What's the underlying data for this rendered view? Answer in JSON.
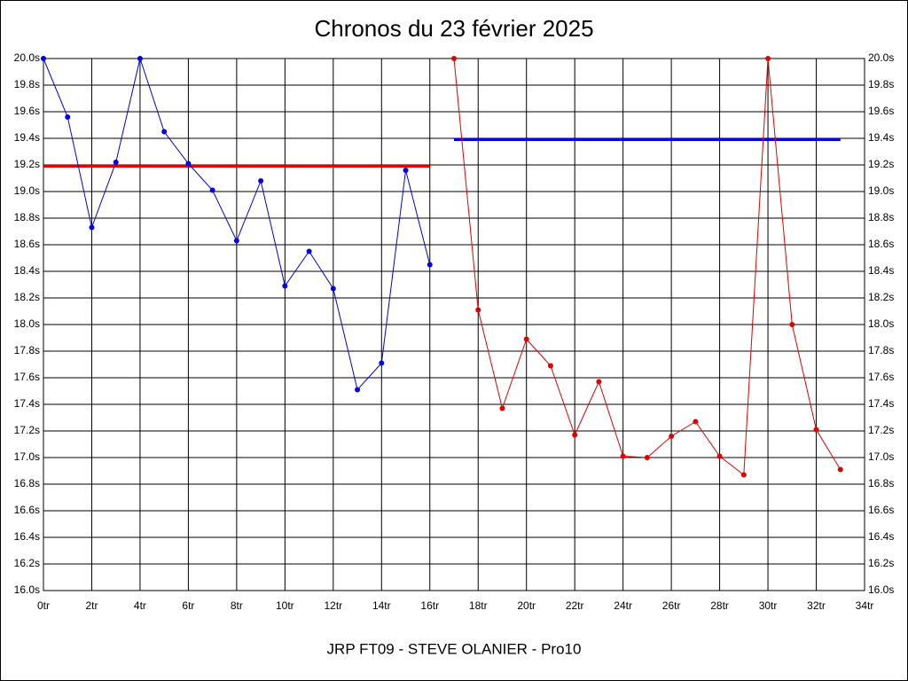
{
  "chart_data": {
    "type": "line",
    "title": "Chronos du 23 février 2025",
    "subtitle": "JRP FT09 - STEVE OLANIER - Pro10",
    "xlim": [
      0,
      34
    ],
    "xticks": [
      {
        "value": 0,
        "label": "0tr"
      },
      {
        "value": 2,
        "label": "2tr"
      },
      {
        "value": 4,
        "label": "4tr"
      },
      {
        "value": 6,
        "label": "6tr"
      },
      {
        "value": 8,
        "label": "8tr"
      },
      {
        "value": 10,
        "label": "10tr"
      },
      {
        "value": 12,
        "label": "12tr"
      },
      {
        "value": 14,
        "label": "14tr"
      },
      {
        "value": 16,
        "label": "16tr"
      },
      {
        "value": 18,
        "label": "18tr"
      },
      {
        "value": 20,
        "label": "20tr"
      },
      {
        "value": 22,
        "label": "22tr"
      },
      {
        "value": 24,
        "label": "24tr"
      },
      {
        "value": 26,
        "label": "26tr"
      },
      {
        "value": 28,
        "label": "28tr"
      },
      {
        "value": 30,
        "label": "30tr"
      },
      {
        "value": 32,
        "label": "32tr"
      },
      {
        "value": 34,
        "label": "34tr"
      }
    ],
    "ylim": [
      16.0,
      20.0
    ],
    "yticks": [
      {
        "value": 16.0,
        "label": "16.0s"
      },
      {
        "value": 16.2,
        "label": "16.2s"
      },
      {
        "value": 16.4,
        "label": "16.4s"
      },
      {
        "value": 16.6,
        "label": "16.6s"
      },
      {
        "value": 16.8,
        "label": "16.8s"
      },
      {
        "value": 17.0,
        "label": "17.0s"
      },
      {
        "value": 17.2,
        "label": "17.2s"
      },
      {
        "value": 17.4,
        "label": "17.4s"
      },
      {
        "value": 17.6,
        "label": "17.6s"
      },
      {
        "value": 17.8,
        "label": "17.8s"
      },
      {
        "value": 18.0,
        "label": "18.0s"
      },
      {
        "value": 18.2,
        "label": "18.2s"
      },
      {
        "value": 18.4,
        "label": "18.4s"
      },
      {
        "value": 18.6,
        "label": "18.6s"
      },
      {
        "value": 18.8,
        "label": "18.8s"
      },
      {
        "value": 19.0,
        "label": "19.0s"
      },
      {
        "value": 19.2,
        "label": "19.2s"
      },
      {
        "value": 19.4,
        "label": "19.4s"
      },
      {
        "value": 19.6,
        "label": "19.6s"
      },
      {
        "value": 19.8,
        "label": "19.8s"
      },
      {
        "value": 20.0,
        "label": "20.0s"
      }
    ],
    "grid": true,
    "series": [
      {
        "color": "#0000e0",
        "x": [
          0,
          1,
          2,
          3,
          4,
          5,
          6,
          7,
          8,
          9,
          10,
          11,
          12,
          13,
          14,
          15,
          16
        ],
        "values": [
          20.0,
          19.56,
          18.73,
          19.22,
          20.0,
          19.45,
          19.21,
          19.01,
          18.63,
          19.08,
          18.29,
          18.55,
          18.27,
          17.51,
          17.71,
          19.16,
          18.45
        ]
      },
      {
        "color": "#e00000",
        "x": [
          17,
          18,
          19,
          20,
          21,
          22,
          23,
          24,
          25,
          26,
          27,
          28,
          29,
          30,
          31,
          32,
          33
        ],
        "values": [
          20.0,
          18.11,
          17.37,
          17.89,
          17.69,
          17.17,
          17.57,
          17.01,
          17.0,
          17.16,
          17.27,
          17.01,
          16.87,
          20.0,
          18.0,
          17.21,
          16.91
        ]
      }
    ],
    "reference_lines": [
      {
        "color": "#e00000",
        "x": [
          0,
          16
        ],
        "value": 19.19
      },
      {
        "color": "#0000e0",
        "x": [
          17,
          33
        ],
        "value": 19.39
      }
    ]
  }
}
